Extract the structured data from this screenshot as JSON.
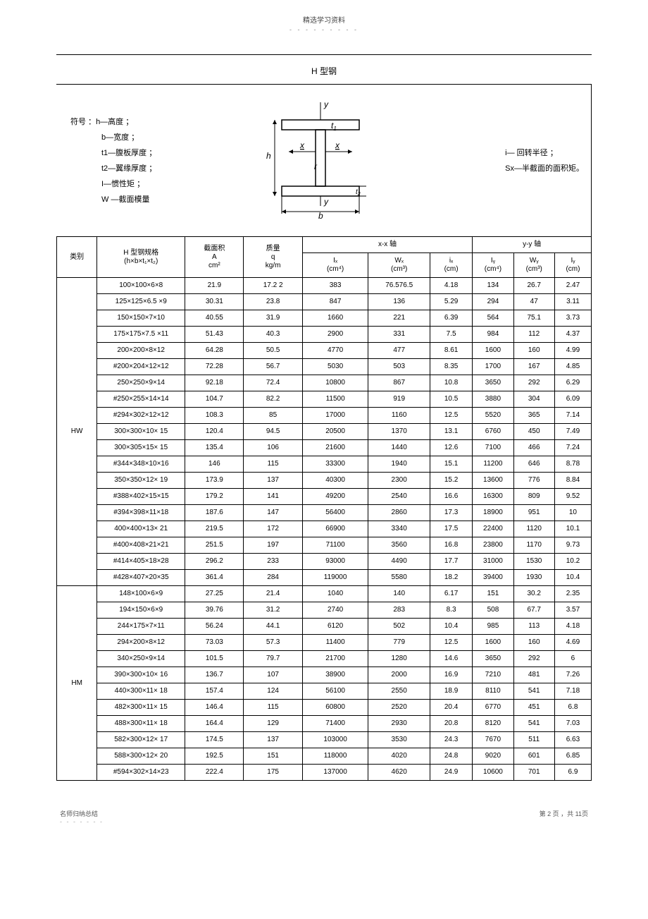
{
  "header_text": "精选学习资料",
  "title": "H 型钢",
  "symbols_left_prefix": "符号 ：",
  "symbols_left": [
    "h—高度 ；",
    "b—宽度 ；",
    "t1—腹板厚度 ；",
    "t2—翼缘厚度 ；",
    "I—惯性矩 ；",
    "W —截面模量"
  ],
  "symbols_right": [
    "i— 回转半径 ；",
    "Sx—半截面的面积矩。"
  ],
  "col_headers": {
    "cat": "类别",
    "spec": "H 型钢规格",
    "spec_sub": "(h×b×t₁×t₂)",
    "area": "截面积",
    "area_sym": "A",
    "area_unit": "cm²",
    "mass": "质量",
    "mass_sym": "q",
    "mass_unit": "kg/m",
    "xx_axis": "x-x 轴",
    "yy_axis": "y-y 轴",
    "Ix": "Iₓ",
    "Ix_u": "(cm⁴)",
    "Wx": "Wₓ",
    "Wx_u": "(cm³)",
    "ix": "iₓ",
    "ix_u": "(cm)",
    "Iy": "Iᵧ",
    "Iy_u": "(cm⁴)",
    "Wy": "Wᵧ",
    "Wy_u": "(cm³)",
    "iy": "Iᵧ",
    "iy_u": "(cm)"
  },
  "groups": [
    {
      "label": "HW",
      "rows": [
        [
          "100×100×6×8",
          "21.9",
          "17.2 2",
          "383",
          "76.576.5",
          "4.18",
          "134",
          "26.7",
          "2.47"
        ],
        [
          "125×125×6.5 ×9",
          "30.31",
          "23.8",
          "847",
          "136",
          "5.29",
          "294",
          "47",
          "3.11"
        ],
        [
          "150×150×7×10",
          "40.55",
          "31.9",
          "1660",
          "221",
          "6.39",
          "564",
          "75.1",
          "3.73"
        ],
        [
          "175×175×7.5 ×11",
          "51.43",
          "40.3",
          "2900",
          "331",
          "7.5",
          "984",
          "112",
          "4.37"
        ],
        [
          "200×200×8×12",
          "64.28",
          "50.5",
          "4770",
          "477",
          "8.61",
          "1600",
          "160",
          "4.99"
        ],
        [
          "#200×204×12×12",
          "72.28",
          "56.7",
          "5030",
          "503",
          "8.35",
          "1700",
          "167",
          "4.85"
        ],
        [
          "250×250×9×14",
          "92.18",
          "72.4",
          "10800",
          "867",
          "10.8",
          "3650",
          "292",
          "6.29"
        ],
        [
          "#250×255×14×14",
          "104.7",
          "82.2",
          "11500",
          "919",
          "10.5",
          "3880",
          "304",
          "6.09"
        ],
        [
          "#294×302×12×12",
          "108.3",
          "85",
          "17000",
          "1160",
          "12.5",
          "5520",
          "365",
          "7.14"
        ],
        [
          "300×300×10× 15",
          "120.4",
          "94.5",
          "20500",
          "1370",
          "13.1",
          "6760",
          "450",
          "7.49"
        ],
        [
          "300×305×15× 15",
          "135.4",
          "106",
          "21600",
          "1440",
          "12.6",
          "7100",
          "466",
          "7.24"
        ],
        [
          "#344×348×10×16",
          "146",
          "115",
          "33300",
          "1940",
          "15.1",
          "11200",
          "646",
          "8.78"
        ],
        [
          "350×350×12× 19",
          "173.9",
          "137",
          "40300",
          "2300",
          "15.2",
          "13600",
          "776",
          "8.84"
        ],
        [
          "#388×402×15×15",
          "179.2",
          "141",
          "49200",
          "2540",
          "16.6",
          "16300",
          "809",
          "9.52"
        ],
        [
          "#394×398×11×18",
          "187.6",
          "147",
          "56400",
          "2860",
          "17.3",
          "18900",
          "951",
          "10"
        ],
        [
          "400×400×13× 21",
          "219.5",
          "172",
          "66900",
          "3340",
          "17.5",
          "22400",
          "1120",
          "10.1"
        ],
        [
          "#400×408×21×21",
          "251.5",
          "197",
          "71100",
          "3560",
          "16.8",
          "23800",
          "1170",
          "9.73"
        ],
        [
          "#414×405×18×28",
          "296.2",
          "233",
          "93000",
          "4490",
          "17.7",
          "31000",
          "1530",
          "10.2"
        ],
        [
          "#428×407×20×35",
          "361.4",
          "284",
          "119000",
          "5580",
          "18.2",
          "39400",
          "1930",
          "10.4"
        ]
      ]
    },
    {
      "label": "HM",
      "rows": [
        [
          "148×100×6×9",
          "27.25",
          "21.4",
          "1040",
          "140",
          "6.17",
          "151",
          "30.2",
          "2.35"
        ],
        [
          "194×150×6×9",
          "39.76",
          "31.2",
          "2740",
          "283",
          "8.3",
          "508",
          "67.7",
          "3.57"
        ],
        [
          "244×175×7×11",
          "56.24",
          "44.1",
          "6120",
          "502",
          "10.4",
          "985",
          "113",
          "4.18"
        ],
        [
          "294×200×8×12",
          "73.03",
          "57.3",
          "11400",
          "779",
          "12.5",
          "1600",
          "160",
          "4.69"
        ],
        [
          "340×250×9×14",
          "101.5",
          "79.7",
          "21700",
          "1280",
          "14.6",
          "3650",
          "292",
          "6"
        ],
        [
          "390×300×10× 16",
          "136.7",
          "107",
          "38900",
          "2000",
          "16.9",
          "7210",
          "481",
          "7.26"
        ],
        [
          "440×300×11× 18",
          "157.4",
          "124",
          "56100",
          "2550",
          "18.9",
          "8110",
          "541",
          "7.18"
        ],
        [
          "482×300×11× 15",
          "146.4",
          "115",
          "60800",
          "2520",
          "20.4",
          "6770",
          "451",
          "6.8"
        ],
        [
          "488×300×11× 18",
          "164.4",
          "129",
          "71400",
          "2930",
          "20.8",
          "8120",
          "541",
          "7.03"
        ],
        [
          "582×300×12× 17",
          "174.5",
          "137",
          "103000",
          "3530",
          "24.3",
          "7670",
          "511",
          "6.63"
        ],
        [
          "588×300×12× 20",
          "192.5",
          "151",
          "118000",
          "4020",
          "24.8",
          "9020",
          "601",
          "6.85"
        ],
        [
          "#594×302×14×23",
          "222.4",
          "175",
          "137000",
          "4620",
          "24.9",
          "10600",
          "701",
          "6.9"
        ]
      ]
    }
  ],
  "footer_left": "名师归纳总结",
  "footer_right": "第 2 页 ，共 11页"
}
